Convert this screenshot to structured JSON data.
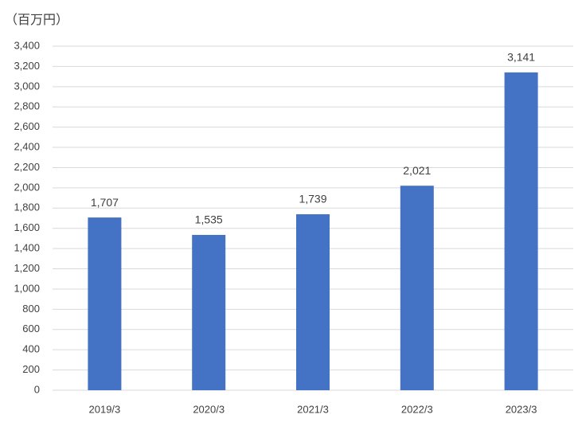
{
  "chart_data": {
    "type": "bar",
    "y_axis_label": "（百万円）",
    "categories": [
      "2019/3",
      "2020/3",
      "2021/3",
      "2022/3",
      "2023/3"
    ],
    "values": [
      1707,
      1535,
      1739,
      2021,
      3141
    ],
    "value_labels": [
      "1,707",
      "1,535",
      "1,739",
      "2,021",
      "3,141"
    ],
    "color": "#4472c4",
    "ylim": [
      0,
      3400
    ],
    "yticks": [
      0,
      200,
      400,
      600,
      800,
      {
        "value": 1000,
        "label": "1,000"
      },
      {
        "value": 1200,
        "label": "1,200"
      },
      {
        "value": 1400,
        "label": "1,400"
      },
      {
        "value": 1600,
        "label": "1,600"
      },
      {
        "value": 1800,
        "label": "1,800"
      },
      {
        "value": 2000,
        "label": "2,000"
      },
      {
        "value": 2200,
        "label": "2,200"
      },
      {
        "value": 2400,
        "label": "2,400"
      },
      {
        "value": 2600,
        "label": "2,600"
      },
      {
        "value": 2800,
        "label": "2,800"
      },
      {
        "value": 3000,
        "label": "3,000"
      },
      {
        "value": 3200,
        "label": "3,200"
      },
      {
        "value": 3400,
        "label": "3,400"
      }
    ],
    "grid": true
  }
}
